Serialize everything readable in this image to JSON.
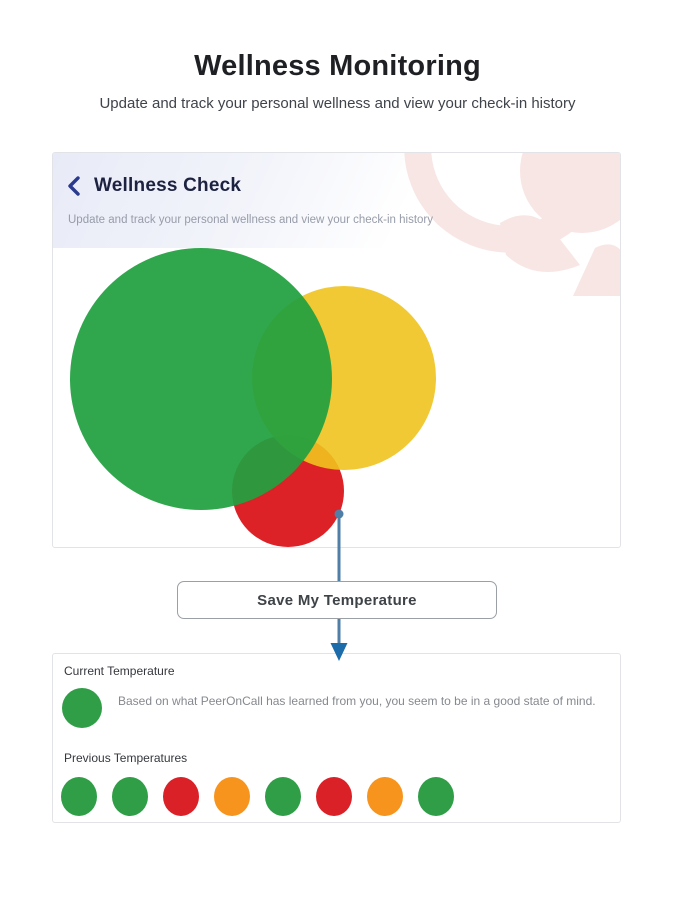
{
  "header": {
    "title": "Wellness Monitoring",
    "subtitle": "Update and track your personal wellness and view your check-in history"
  },
  "wellness_card": {
    "title": "Wellness Check",
    "subtitle": "Update and track your personal wellness and view your check-in history",
    "temperature_options": [
      {
        "name": "green",
        "color": "#21a040"
      },
      {
        "name": "yellow",
        "color": "#efc31e"
      },
      {
        "name": "red",
        "color": "#dc2127"
      }
    ]
  },
  "save_button": {
    "label": "Save My Temperature"
  },
  "results_card": {
    "current": {
      "label": "Current Temperature",
      "color": "#2f9e47",
      "description": "Based on what PeerOnCall has learned from you, you seem to be in a good state of mind."
    },
    "previous": {
      "label": "Previous Temperatures",
      "colors": [
        "#2f9e47",
        "#2f9e47",
        "#da2128",
        "#f7941e",
        "#2f9e47",
        "#da2128",
        "#f7941e",
        "#2f9e47"
      ]
    }
  },
  "colors": {
    "navy_title": "#1c2240",
    "chevron_blue": "#2a3a8f",
    "arrow_blue": "#4f7fa6",
    "arrowhead_blue": "#1c6ca9",
    "watermark_pink": "#f8e6e5"
  }
}
